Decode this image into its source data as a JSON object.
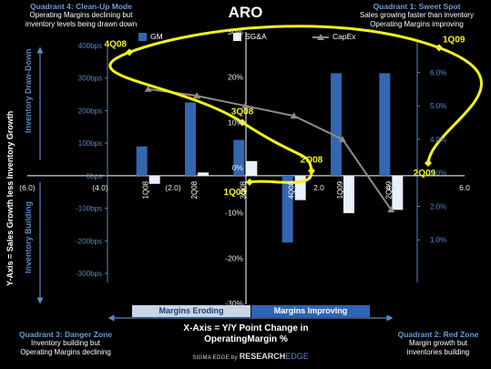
{
  "title": "ARO",
  "quadrants": {
    "q1": {
      "title": "Quadrant 1: Sweet Spot",
      "line1": "Sales growing faster than  inventory",
      "line2": "Operating Margins improving"
    },
    "q2": {
      "title": "Quadrant 2: Red Zone",
      "line1": "Margin growth but",
      "line2": "inventories building"
    },
    "q3": {
      "title": "Quadrant 3: Danger Zone",
      "line1": "Inventory building but",
      "line2": "Operating Margins declining"
    },
    "q4": {
      "title": "Quadrant 4: Clean-Up Mode",
      "line1": "Operating Margins declining but",
      "line2": "inventory levels being drawn down"
    }
  },
  "y_axis_title": "Y-Axis = Sales Growth less Inventory Growth",
  "side_labels": {
    "top": "Inventory Draw-Down",
    "bottom": "Inventory Building"
  },
  "x_axis_title_line1": "X-Axis = Y/Y  Point Change in",
  "x_axis_title_line2": "OperatingMargin %",
  "bands": {
    "left": "Margins Eroding",
    "right": "Margins Improving"
  },
  "footer": {
    "left": "SIGMA EDGE",
    "mid": "by",
    "right_a": "RESEARCH",
    "right_b": "EDGE"
  },
  "colors": {
    "gm": "#3566b0",
    "sga": "#e8f0fb",
    "capex": "#8c8c80",
    "scatter": "#f2f21a",
    "axis_blue": "#5a86c4"
  },
  "chart_data": [
    {
      "type": "bar",
      "categories": [
        "1Q08",
        "2Q08",
        "3Q08",
        "4Q08",
        "1Q09",
        "2Q09"
      ],
      "series": [
        {
          "name": "GM",
          "axis": "left-bps",
          "values": [
            90,
            225,
            110,
            -205,
            315,
            315
          ]
        },
        {
          "name": "SG&A",
          "axis": "left-bps",
          "values": [
            -25,
            10,
            45,
            -75,
            -115,
            -105
          ]
        }
      ],
      "left_axis": {
        "ticks": [
          "400bps",
          "300bps",
          "200bps",
          "100bps",
          "0bps",
          "-100bps",
          "-200bps",
          "-300bps"
        ],
        "ylim": [
          -300,
          400
        ]
      }
    },
    {
      "type": "line",
      "categories": [
        "1Q08",
        "2Q08",
        "3Q08",
        "4Q08",
        "1Q09",
        "2Q09"
      ],
      "series": [
        {
          "name": "CapEx",
          "axis": "right-pct",
          "values": [
            5.5,
            5.3,
            5.0,
            4.7,
            4.0,
            1.9
          ]
        }
      ],
      "right_axis": {
        "ticks": [
          "6.0%",
          "5.0%",
          "4.0%",
          "3.0%",
          "2.0%",
          "1.0%"
        ],
        "ylim": [
          0.0,
          6.8
        ]
      }
    },
    {
      "type": "scatter",
      "connected": true,
      "points": [
        {
          "label": "1Q08",
          "x": 0.1,
          "y": -3.2
        },
        {
          "label": "2Q08",
          "x": 1.8,
          "y": -0.7
        },
        {
          "label": "3Q08",
          "x": -0.1,
          "y": 10.0
        },
        {
          "label": "4Q08",
          "x": -3.2,
          "y": 25.5
        },
        {
          "label": "1Q09",
          "x": 5.3,
          "y": 26.5
        },
        {
          "label": "2Q09",
          "x": 5.0,
          "y": 1.0
        }
      ],
      "x_ticks": [
        "(6.0)",
        "(4.0)",
        "(2.0)",
        "-",
        "2.0",
        "4.0",
        "6.0"
      ],
      "xlim": [
        -6,
        6
      ],
      "y_ticks": [
        "30%",
        "20%",
        "10%",
        "0%",
        "-10%",
        "-20%",
        "-30%"
      ],
      "ylim": [
        -30,
        30
      ]
    }
  ]
}
